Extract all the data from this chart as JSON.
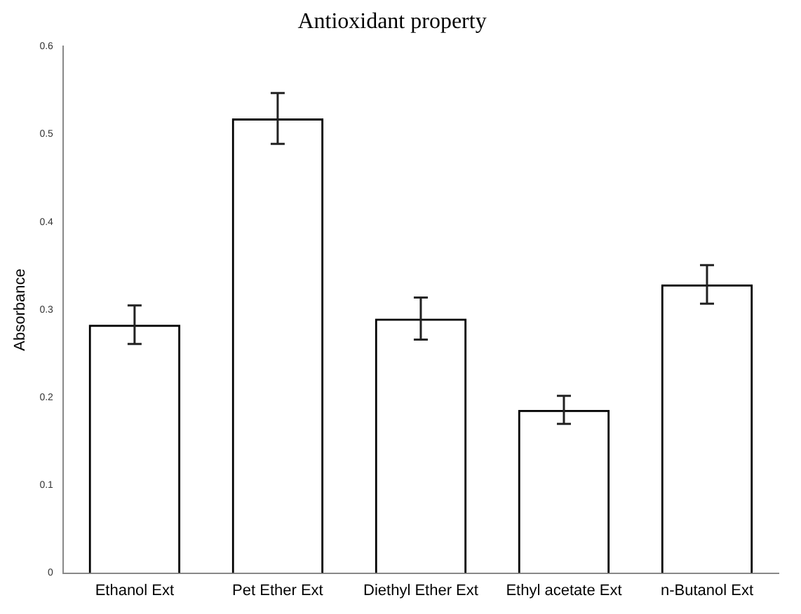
{
  "chart_data": {
    "type": "bar",
    "title": "Antioxidant property",
    "ylabel": "Absorbance",
    "categories": [
      "Ethanol Ext",
      "Pet Ether Ext",
      "Diethyl Ether Ext",
      "Ethyl acetate Ext",
      "n-Butanol Ext"
    ],
    "values": [
      0.283,
      0.518,
      0.29,
      0.186,
      0.329
    ],
    "errors": [
      0.022,
      0.029,
      0.024,
      0.016,
      0.022
    ],
    "color": "#000000",
    "ylim": [
      0,
      0.6
    ],
    "yticks": [
      0,
      0.1,
      0.2,
      0.3,
      0.4,
      0.5,
      0.6
    ],
    "grid": false,
    "legend": false
  }
}
